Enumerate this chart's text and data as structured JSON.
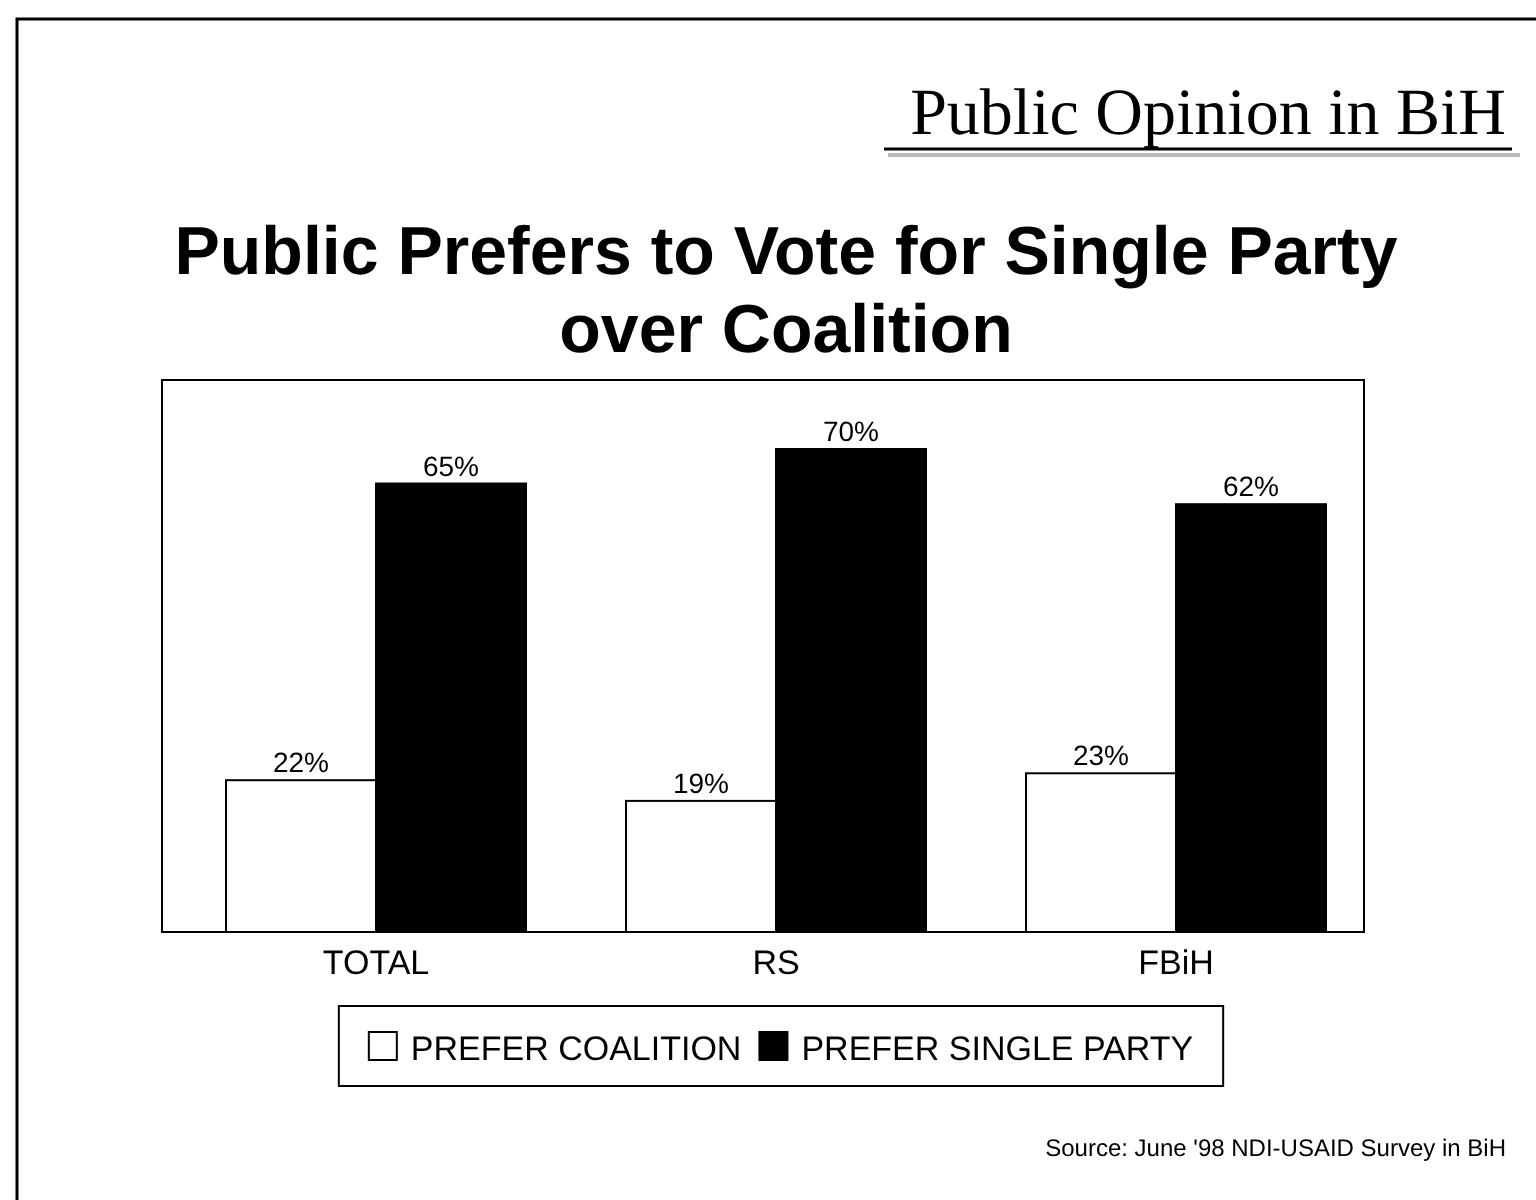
{
  "chart_data": {
    "type": "bar",
    "title": "Public Prefers to Vote for Single Party over Coalition",
    "subtitle": "Public Opinion in BiH",
    "categories": [
      "TOTAL",
      "RS",
      "FBiH"
    ],
    "series": [
      {
        "name": "PREFER COALITION",
        "color": "#ffffff",
        "values": [
          22,
          19,
          23
        ],
        "value_labels": [
          "22%",
          "19%",
          "23%"
        ]
      },
      {
        "name": "PREFER SINGLE PARTY",
        "color": "#000000",
        "values": [
          65,
          70,
          62
        ],
        "value_labels": [
          "65%",
          "70%",
          "62%"
        ]
      }
    ],
    "ylim": [
      0,
      80
    ],
    "legend": "bottom",
    "annotations": [
      "Source: June '98 NDI-USAID Survey in BiH"
    ]
  }
}
